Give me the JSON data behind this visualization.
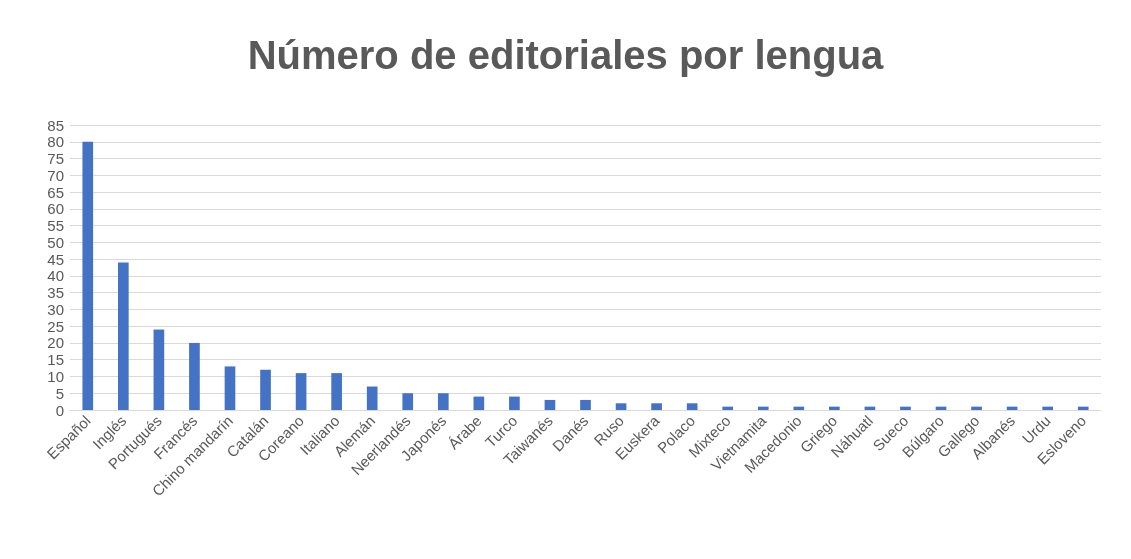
{
  "chart_data": {
    "type": "bar",
    "title": "Número de editoriales por lengua",
    "categories": [
      "Español",
      "Inglés",
      "Portugués",
      "Francés",
      "Chino mandarín",
      "Catalán",
      "Coreano",
      "Italiano",
      "Alemán",
      "Neerlandés",
      "Japonés",
      "Árabe",
      "Turco",
      "Taiwanés",
      "Danés",
      "Ruso",
      "Euskera",
      "Polaco",
      "Mixteco",
      "Vietnamita",
      "Macedonio",
      "Griego",
      "Náhuatl",
      "Sueco",
      "Búlgaro",
      "Gallego",
      "Albanés",
      "Urdu",
      "Esloveno"
    ],
    "values": [
      80,
      44,
      24,
      20,
      13,
      12,
      11,
      11,
      7,
      5,
      5,
      4,
      4,
      3,
      3,
      2,
      2,
      2,
      1,
      1,
      1,
      1,
      1,
      1,
      1,
      1,
      1,
      1,
      1
    ],
    "color": "#4472c4",
    "ylim": [
      0,
      85
    ],
    "yticks": [
      0,
      5,
      10,
      15,
      20,
      25,
      30,
      35,
      40,
      45,
      50,
      55,
      60,
      65,
      70,
      75,
      80,
      85
    ],
    "grid": "y"
  }
}
